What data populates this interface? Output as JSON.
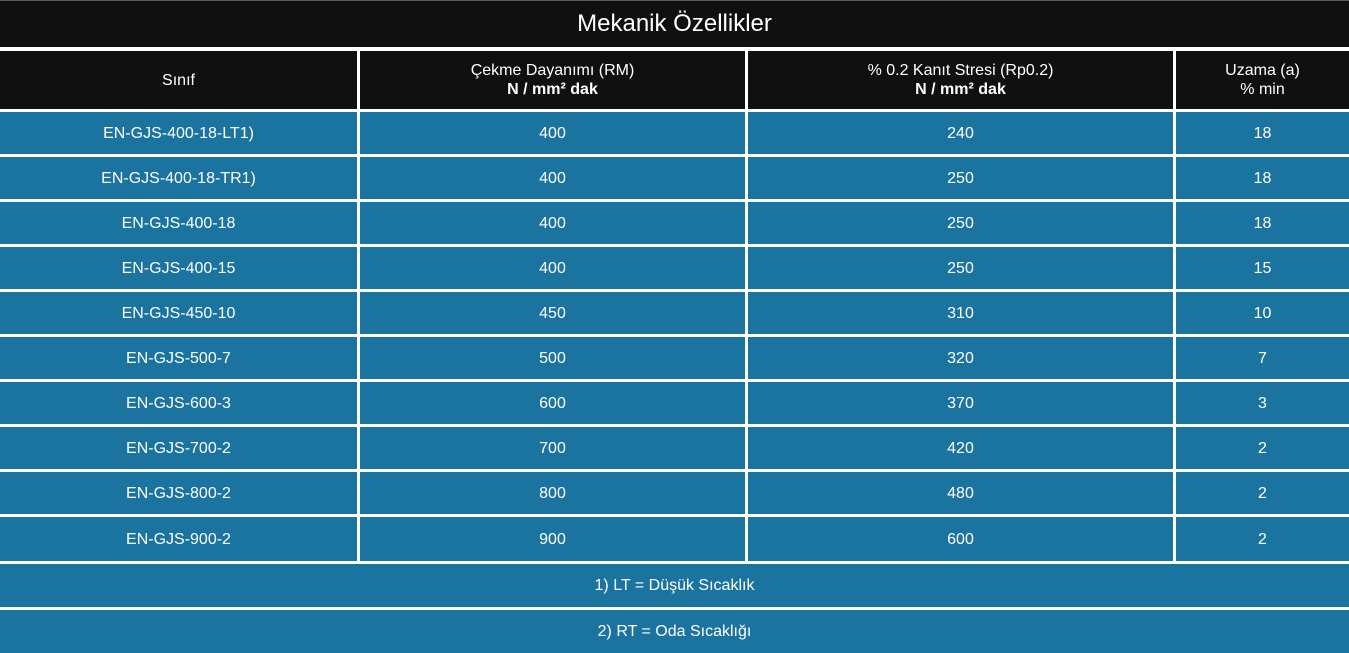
{
  "title": "Mekanik Özellikler",
  "header": {
    "col0": "Sınıf",
    "col1_line1": "Çekme Dayanımı (RM)",
    "col1_line2": "N / mm² dak",
    "col2_line1": "% 0.2 Kanıt Stresi (Rp0.2)",
    "col2_line2": "N / mm² dak",
    "col3_line1": "Uzama (a)",
    "col3_line2": "% min"
  },
  "rows": [
    {
      "grade": "EN-GJS-400-18-LT1)",
      "tensile": "400",
      "proof": "240",
      "elong": "18"
    },
    {
      "grade": "EN-GJS-400-18-TR1)",
      "tensile": "400",
      "proof": "250",
      "elong": "18"
    },
    {
      "grade": "EN-GJS-400-18",
      "tensile": "400",
      "proof": "250",
      "elong": "18"
    },
    {
      "grade": "EN-GJS-400-15",
      "tensile": "400",
      "proof": "250",
      "elong": "15"
    },
    {
      "grade": "EN-GJS-450-10",
      "tensile": "450",
      "proof": "310",
      "elong": "10"
    },
    {
      "grade": "EN-GJS-500-7",
      "tensile": "500",
      "proof": "320",
      "elong": "7"
    },
    {
      "grade": "EN-GJS-600-3",
      "tensile": "600",
      "proof": "370",
      "elong": "3"
    },
    {
      "grade": "EN-GJS-700-2",
      "tensile": "700",
      "proof": "420",
      "elong": "2"
    },
    {
      "grade": "EN-GJS-800-2",
      "tensile": "800",
      "proof": "480",
      "elong": "2"
    },
    {
      "grade": "EN-GJS-900-2",
      "tensile": "900",
      "proof": "600",
      "elong": "2"
    }
  ],
  "notes": [
    "1) LT = Düşük Sıcaklık",
    "2) RT = Oda Sıcaklığı"
  ],
  "colors": {
    "header_bg": "#101010",
    "row_bg": "#1b73a0",
    "grid": "#ffffff"
  }
}
